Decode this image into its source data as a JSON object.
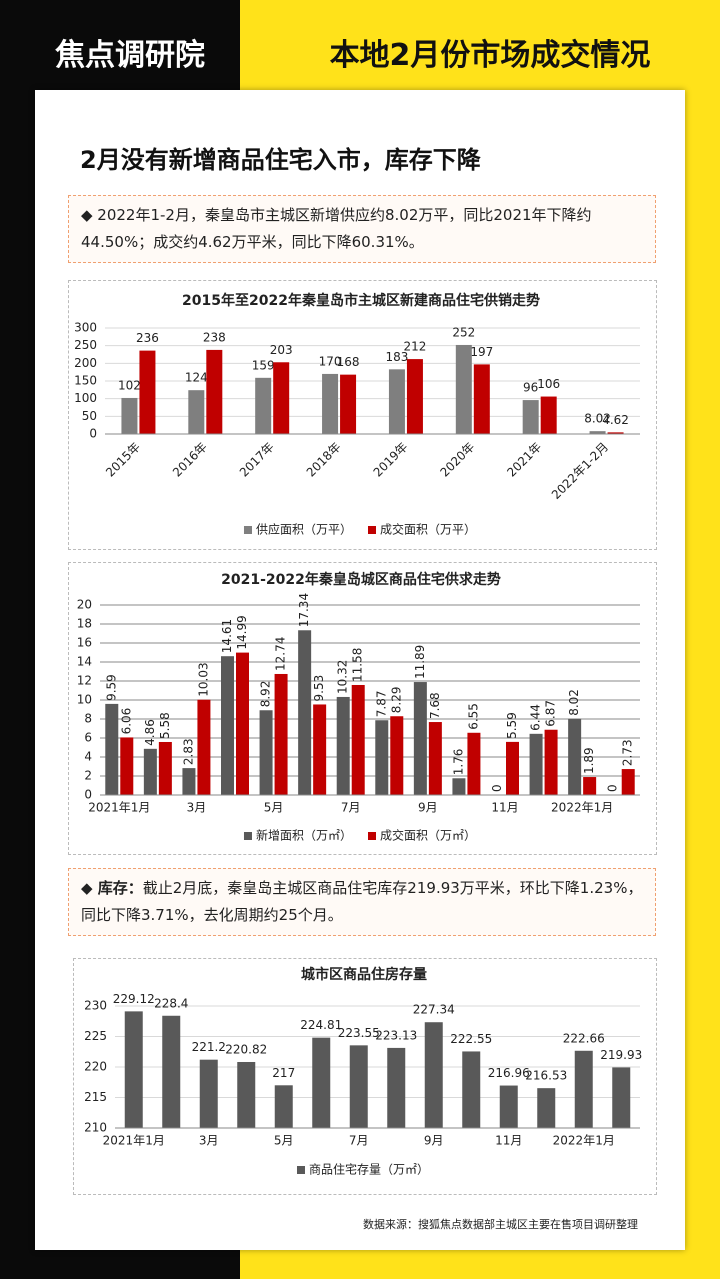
{
  "header": {
    "brand": "焦点调研院",
    "title": "本地2月份市场成交情况"
  },
  "section_title": "2月没有新增商品住宅入市，库存下降",
  "note_1": "◆ 2022年1-2月，秦皇岛市主城区新增供应约8.02万平，同比2021年下降约44.50%；成交约4.62万平米，同比下降60.31%。",
  "note_2": {
    "label": "◆ 库存：",
    "text": "截止2月底，秦皇岛主城区商品住宅库存219.93万平米，环比下降1.23%，同比下降3.71%，去化周期约25个月。"
  },
  "chart_data": [
    {
      "type": "bar",
      "title": "2015年至2022年秦皇岛市主城区新建商品住宅供销走势",
      "categories": [
        "2015年",
        "2016年",
        "2017年",
        "2018年",
        "2019年",
        "2020年",
        "2021年",
        "2022年1-2月"
      ],
      "series": [
        {
          "name": "供应面积（万平）",
          "color": "#7f7f7f",
          "values": [
            102,
            124,
            159,
            170,
            183,
            252,
            96,
            8.02
          ]
        },
        {
          "name": "成交面积（万平）",
          "color": "#c00000",
          "values": [
            236,
            238,
            203,
            168,
            212,
            197,
            106,
            4.62
          ]
        }
      ],
      "ylim": [
        0,
        300
      ],
      "yticks": [
        0,
        50,
        100,
        150,
        200,
        250,
        300
      ],
      "grid": true,
      "legend": "bottom"
    },
    {
      "type": "bar",
      "title": "2021-2022年秦皇岛城区商品住宅供求走势",
      "categories": [
        "2021年1月",
        null,
        "3月",
        null,
        "5月",
        null,
        "7月",
        null,
        "9月",
        null,
        "11月",
        null,
        "2022年1月",
        null
      ],
      "series": [
        {
          "name": "新增面积（万㎡）",
          "color": "#595959",
          "values": [
            9.59,
            4.86,
            2.83,
            14.61,
            8.92,
            17.34,
            10.32,
            7.87,
            11.89,
            1.76,
            0,
            6.44,
            8.02,
            0
          ]
        },
        {
          "name": "成交面积（万㎡）",
          "color": "#c00000",
          "values": [
            6.06,
            5.58,
            10.03,
            14.99,
            12.74,
            9.53,
            11.58,
            8.29,
            7.68,
            6.55,
            5.59,
            6.87,
            1.89,
            2.73
          ]
        }
      ],
      "ylim": [
        0,
        20
      ],
      "yticks": [
        0,
        2,
        4,
        6,
        8,
        10,
        12,
        14,
        16,
        18,
        20
      ],
      "grid": true,
      "legend": "bottom"
    },
    {
      "type": "bar",
      "title": "城市区商品住房存量",
      "categories": [
        "2021年1月",
        null,
        "3月",
        null,
        "5月",
        null,
        "7月",
        null,
        "9月",
        null,
        "11月",
        null,
        "2022年1月",
        null
      ],
      "series": [
        {
          "name": "商品住宅存量（万㎡）",
          "color": "#595959",
          "values": [
            229.12,
            228.4,
            221.2,
            220.82,
            217,
            224.81,
            223.55,
            223.13,
            227.34,
            222.55,
            216.96,
            216.53,
            222.66,
            219.93
          ]
        }
      ],
      "ylim": [
        210,
        230
      ],
      "yticks": [
        210,
        215,
        220,
        225,
        230
      ],
      "grid": true,
      "legend": "bottom"
    }
  ],
  "source": "数据来源：搜狐焦点数据部主城区主要在售项目调研整理"
}
